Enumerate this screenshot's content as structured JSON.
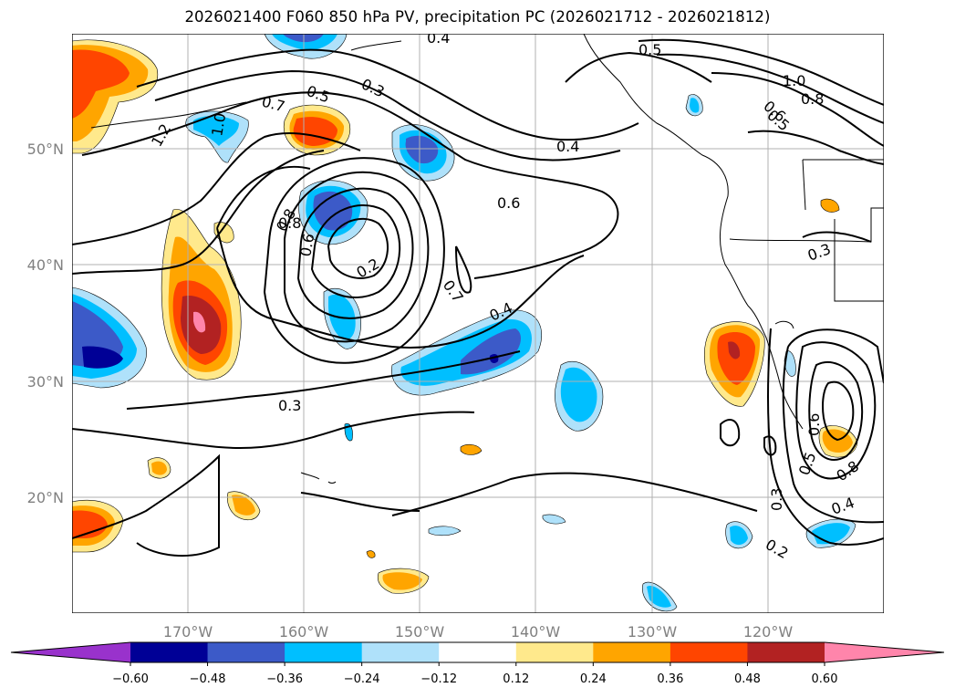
{
  "title": "2026021400 F060 850 hPa PV, precipitation PC (2026021712 - 2026021812)",
  "map": {
    "lon_ticks": [
      "170°W",
      "160°W",
      "150°W",
      "140°W",
      "130°W",
      "120°W"
    ],
    "lat_ticks": [
      "50°N",
      "40°N",
      "30°N",
      "20°N"
    ]
  },
  "contour_labels": [
    "0.4",
    "0.5",
    "0.3",
    "0.5",
    "0.7",
    "1.0",
    "1.2",
    "0.8",
    "0.6",
    "0.4",
    "0.6",
    "0.8",
    "0.3",
    "0.2",
    "0.7",
    "0.4",
    "0.3",
    "0.3",
    "0.6",
    "0.5",
    "0.8",
    "0.4",
    "0.3",
    "0.2",
    "0.5",
    "1.0",
    "0.8",
    "0.6"
  ],
  "colorbar": {
    "colors": [
      "#9932cc",
      "#000096",
      "#3c5ac8",
      "#00bfff",
      "#afe1fa",
      "#ffffff",
      "#ffe98c",
      "#ffa500",
      "#ff4500",
      "#b22222",
      "#ff85ab"
    ],
    "ticks": [
      "−0.60",
      "−0.48",
      "−0.36",
      "−0.24",
      "−0.12",
      "0.12",
      "0.24",
      "0.36",
      "0.48",
      "0.60"
    ]
  }
}
